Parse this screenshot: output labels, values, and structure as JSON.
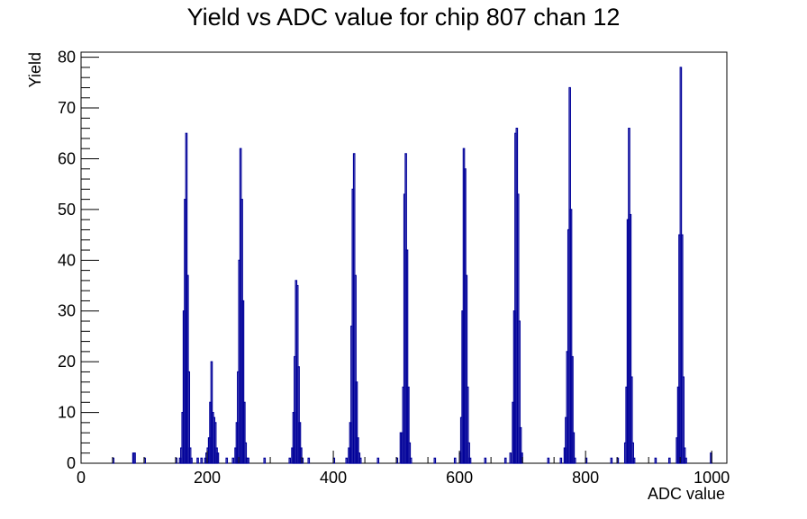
{
  "chart_data": {
    "type": "bar",
    "title": "Yield vs ADC value for chip 807 chan 12",
    "xlabel": "ADC value",
    "ylabel": "Yield",
    "xlim": [
      0,
      1024
    ],
    "ylim": [
      0,
      81
    ],
    "x_ticks": [
      0,
      200,
      400,
      600,
      800,
      1000
    ],
    "y_ticks": [
      0,
      10,
      20,
      30,
      40,
      50,
      60,
      70,
      80
    ],
    "grid": false,
    "legend": "none",
    "bin_width": 2,
    "color": "#000099",
    "bins": [
      [
        50,
        1
      ],
      [
        82,
        2
      ],
      [
        84,
        2
      ],
      [
        100,
        1
      ],
      [
        150,
        1
      ],
      [
        156,
        1
      ],
      [
        158,
        3
      ],
      [
        160,
        10
      ],
      [
        162,
        30
      ],
      [
        164,
        52
      ],
      [
        166,
        65
      ],
      [
        168,
        37
      ],
      [
        170,
        18
      ],
      [
        172,
        3
      ],
      [
        174,
        1
      ],
      [
        184,
        1
      ],
      [
        190,
        1
      ],
      [
        196,
        1
      ],
      [
        198,
        2
      ],
      [
        200,
        3
      ],
      [
        202,
        5
      ],
      [
        204,
        12
      ],
      [
        206,
        20
      ],
      [
        208,
        10
      ],
      [
        210,
        9
      ],
      [
        212,
        8
      ],
      [
        214,
        3
      ],
      [
        216,
        2
      ],
      [
        230,
        1
      ],
      [
        240,
        1
      ],
      [
        244,
        3
      ],
      [
        246,
        8
      ],
      [
        248,
        18
      ],
      [
        250,
        40
      ],
      [
        252,
        62
      ],
      [
        254,
        52
      ],
      [
        256,
        32
      ],
      [
        258,
        12
      ],
      [
        260,
        4
      ],
      [
        262,
        1
      ],
      [
        264,
        1
      ],
      [
        290,
        1
      ],
      [
        330,
        1
      ],
      [
        334,
        3
      ],
      [
        336,
        10
      ],
      [
        338,
        21
      ],
      [
        340,
        36
      ],
      [
        342,
        35
      ],
      [
        344,
        19
      ],
      [
        346,
        8
      ],
      [
        348,
        3
      ],
      [
        350,
        1
      ],
      [
        360,
        1
      ],
      [
        400,
        1
      ],
      [
        420,
        1
      ],
      [
        424,
        3
      ],
      [
        426,
        8
      ],
      [
        428,
        27
      ],
      [
        430,
        54
      ],
      [
        432,
        61
      ],
      [
        434,
        37
      ],
      [
        436,
        16
      ],
      [
        438,
        5
      ],
      [
        440,
        2
      ],
      [
        442,
        1
      ],
      [
        470,
        1
      ],
      [
        500,
        1
      ],
      [
        506,
        6
      ],
      [
        508,
        6
      ],
      [
        510,
        15
      ],
      [
        512,
        53
      ],
      [
        514,
        61
      ],
      [
        516,
        42
      ],
      [
        518,
        15
      ],
      [
        520,
        4
      ],
      [
        522,
        1
      ],
      [
        560,
        1
      ],
      [
        592,
        1
      ],
      [
        600,
        2
      ],
      [
        602,
        9
      ],
      [
        604,
        30
      ],
      [
        606,
        62
      ],
      [
        608,
        58
      ],
      [
        610,
        37
      ],
      [
        612,
        15
      ],
      [
        614,
        4
      ],
      [
        616,
        1
      ],
      [
        640,
        1
      ],
      [
        672,
        1
      ],
      [
        680,
        2
      ],
      [
        684,
        12
      ],
      [
        686,
        30
      ],
      [
        688,
        65
      ],
      [
        690,
        66
      ],
      [
        692,
        53
      ],
      [
        694,
        28
      ],
      [
        696,
        7
      ],
      [
        698,
        2
      ],
      [
        740,
        1
      ],
      [
        760,
        1
      ],
      [
        766,
        3
      ],
      [
        768,
        9
      ],
      [
        770,
        22
      ],
      [
        772,
        46
      ],
      [
        774,
        74
      ],
      [
        776,
        50
      ],
      [
        778,
        21
      ],
      [
        780,
        6
      ],
      [
        782,
        1
      ],
      [
        800,
        1
      ],
      [
        840,
        1
      ],
      [
        850,
        1
      ],
      [
        862,
        4
      ],
      [
        864,
        15
      ],
      [
        866,
        48
      ],
      [
        868,
        66
      ],
      [
        870,
        49
      ],
      [
        872,
        17
      ],
      [
        874,
        4
      ],
      [
        876,
        1
      ],
      [
        910,
        1
      ],
      [
        932,
        1
      ],
      [
        944,
        5
      ],
      [
        946,
        15
      ],
      [
        948,
        45
      ],
      [
        950,
        78
      ],
      [
        952,
        45
      ],
      [
        954,
        17
      ],
      [
        956,
        3
      ],
      [
        958,
        1
      ],
      [
        998,
        2
      ]
    ]
  }
}
